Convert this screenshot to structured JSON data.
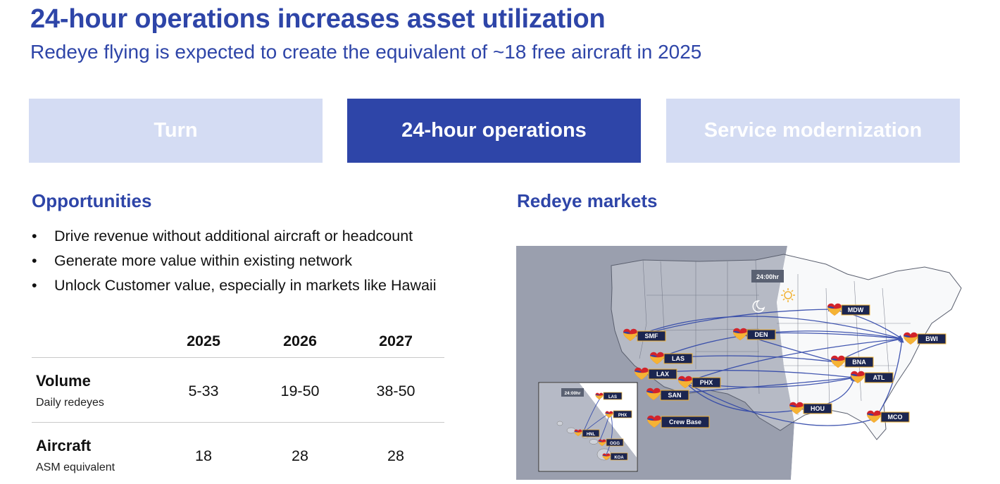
{
  "header": {
    "title": "24-hour operations increases asset utilization",
    "subtitle": "Redeye flying is expected to create the equivalent of ~18 free aircraft in 2025"
  },
  "tabs": [
    {
      "label": "Turn",
      "state": "inactive"
    },
    {
      "label": "24-hour operations",
      "state": "active"
    },
    {
      "label": "Service modernization",
      "state": "inactive"
    }
  ],
  "opportunities": {
    "heading": "Opportunities",
    "bullets": [
      "Drive revenue without additional aircraft or headcount",
      "Generate more value within existing network",
      "Unlock Customer value, especially in markets like Hawaii"
    ]
  },
  "table": {
    "years": [
      "2025",
      "2026",
      "2027"
    ],
    "rows": [
      {
        "label": "Volume",
        "sublabel": "Daily redeyes",
        "values": [
          "5-33",
          "19-50",
          "38-50"
        ]
      },
      {
        "label": "Aircraft",
        "sublabel": "ASM equivalent",
        "values": [
          "18",
          "28",
          "28"
        ]
      }
    ]
  },
  "markets": {
    "heading": "Redeye markets",
    "clock": "24:00hr",
    "inset_clock": "24:00hr",
    "cities": [
      "MDW",
      "DEN",
      "SMF",
      "LAS",
      "LAX",
      "PHX",
      "SAN",
      "BWI",
      "BNA",
      "ATL",
      "HOU",
      "MCO"
    ],
    "inset_cities": [
      "LAS",
      "PHX",
      "HNL",
      "OGG",
      "KOA"
    ],
    "legend": "Crew Base",
    "colors": {
      "night_shade": "#9a9fae",
      "route": "#2e45a8",
      "label_bg": "#1b2550",
      "label_border": "#f2b233",
      "heart_red": "#d2232a",
      "heart_yellow": "#f5b335"
    }
  },
  "colors": {
    "brand_blue": "#2e45a8",
    "tab_inactive": "#d4dcf3"
  }
}
